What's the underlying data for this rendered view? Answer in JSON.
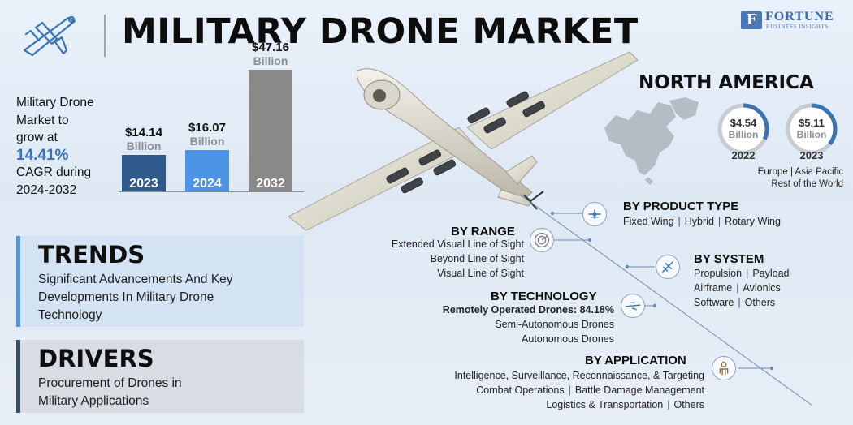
{
  "title": "MILITARY DRONE MARKET",
  "logo": {
    "name": "FORTUNE",
    "tagline": "BUSINESS INSIGHTS"
  },
  "icons": {
    "header": "drone-icon",
    "logo": "fortune-logo-mark"
  },
  "cagr": {
    "line1": "Military Drone",
    "line2": "Market to",
    "line3": "grow at",
    "rate": "14.41%",
    "line4": "CAGR during",
    "period": "2024-2032"
  },
  "chart_data": {
    "type": "bar",
    "categories": [
      "2023",
      "2024",
      "2032"
    ],
    "values": [
      14.14,
      16.07,
      47.16
    ],
    "value_labels": [
      "$14.14",
      "$16.07",
      "$47.16"
    ],
    "unit_label": "Billion",
    "colors": [
      "#2f5a8c",
      "#4d93e6",
      "#8a8a8a"
    ],
    "title": "",
    "xlabel": "",
    "ylabel": ""
  },
  "north_america": {
    "title": "NORTH AMERICA",
    "rings": [
      {
        "value": "$4.54",
        "unit": "Billion",
        "year": "2022",
        "fraction": 0.32
      },
      {
        "value": "$5.11",
        "unit": "Billion",
        "year": "2023",
        "fraction": 0.36
      }
    ],
    "regions_line1": "Europe | Asia Pacific",
    "regions_line2": "Rest of the World",
    "ring_color": "#3a73b4",
    "ring_track": "#c7ccd3"
  },
  "trends": {
    "title": "TRENDS",
    "lines": [
      "Significant Advancements And Key",
      "Developments In Military Drone",
      "Technology"
    ]
  },
  "drivers": {
    "title": "DRIVERS",
    "lines": [
      "Procurement of Drones in",
      "Military Applications"
    ]
  },
  "segments": {
    "product_type": {
      "title": "BY PRODUCT TYPE",
      "items": [
        "Fixed Wing",
        "Hybrid",
        "Rotary Wing"
      ],
      "icon": "drone-top-icon"
    },
    "range": {
      "title": "BY RANGE",
      "items": [
        "Extended Visual Line of Sight",
        "Beyond Line of Sight",
        "Visual Line of Sight"
      ],
      "icon": "radar-icon"
    },
    "system": {
      "title": "BY SYSTEM",
      "rows": [
        [
          "Propulsion",
          "Payload"
        ],
        [
          "Airframe",
          "Avionics"
        ],
        [
          "Software",
          "Others"
        ]
      ],
      "icon": "drone-system-icon"
    },
    "technology": {
      "title": "BY TECHNOLOGY",
      "lead": "Remotely Operated Drones: 84.18%",
      "items": [
        "Semi-Autonomous Drones",
        "Autonomous Drones"
      ],
      "icon": "drone-side-icon"
    },
    "application": {
      "title": "BY APPLICATION",
      "line1": "Intelligence, Surveillance, Reconnaissance, & Targeting",
      "row2": [
        "Combat Operations",
        "Battle Damage Management"
      ],
      "row3": [
        "Logistics & Transportation",
        "Others"
      ],
      "icon": "soldier-icon"
    }
  }
}
